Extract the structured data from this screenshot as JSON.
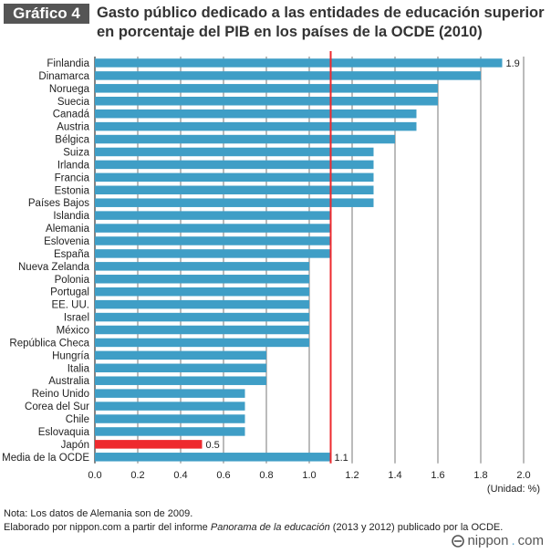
{
  "header": {
    "badge": "Gráfico 4",
    "title": "Gasto público dedicado a las entidades de educación superior en porcentaje del PIB en los países de la OCDE (2010)"
  },
  "chart_data": {
    "type": "bar",
    "orientation": "horizontal",
    "categories": [
      "Finlandia",
      "Dinamarca",
      "Noruega",
      "Suecia",
      "Canadá",
      "Austria",
      "Bélgica",
      "Suiza",
      "Irlanda",
      "Francia",
      "Estonia",
      "Países Bajos",
      "Islandia",
      "Alemania",
      "Eslovenia",
      "España",
      "Nueva Zelanda",
      "Polonia",
      "Portugal",
      "EE. UU.",
      "Israel",
      "México",
      "República Checa",
      "Hungría",
      "Italia",
      "Australia",
      "Reino Unido",
      "Corea del Sur",
      "Chile",
      "Eslovaquia",
      "Japón",
      "Media de la OCDE"
    ],
    "values": [
      1.9,
      1.8,
      1.6,
      1.6,
      1.5,
      1.5,
      1.4,
      1.3,
      1.3,
      1.3,
      1.3,
      1.3,
      1.1,
      1.1,
      1.1,
      1.1,
      1.0,
      1.0,
      1.0,
      1.0,
      1.0,
      1.0,
      1.0,
      0.8,
      0.8,
      0.8,
      0.7,
      0.7,
      0.7,
      0.7,
      0.5,
      1.1
    ],
    "highlight": "Japón",
    "data_labels": {
      "Finlandia": "1.9",
      "Japón": "0.5",
      "Media de la OCDE": "1.1"
    },
    "reference_line": 1.1,
    "xlim": [
      0,
      2.0
    ],
    "xticks": [
      "0.0",
      "0.2",
      "0.4",
      "0.6",
      "0.8",
      "1.0",
      "1.2",
      "1.4",
      "1.6",
      "1.8",
      "2.0"
    ],
    "grid": true,
    "colors": {
      "bar": "#3f9ec6",
      "highlight": "#ee2a2e",
      "reference": "#ee2a2e",
      "grid": "#555555"
    }
  },
  "unit": "(Unidad: %)",
  "notes": {
    "line1": "Nota: Los datos de Alemania son de 2009.",
    "line2_pre": "Elaborado por nippon.com a partir del informe ",
    "line2_italic": "Panorama de la educación",
    "line2_post": " (2013 y 2012) publicado por la OCDE."
  },
  "brand": {
    "name": "nippon",
    "dot": ".",
    "suffix": "com",
    "icon": "nippon-logo-icon"
  }
}
